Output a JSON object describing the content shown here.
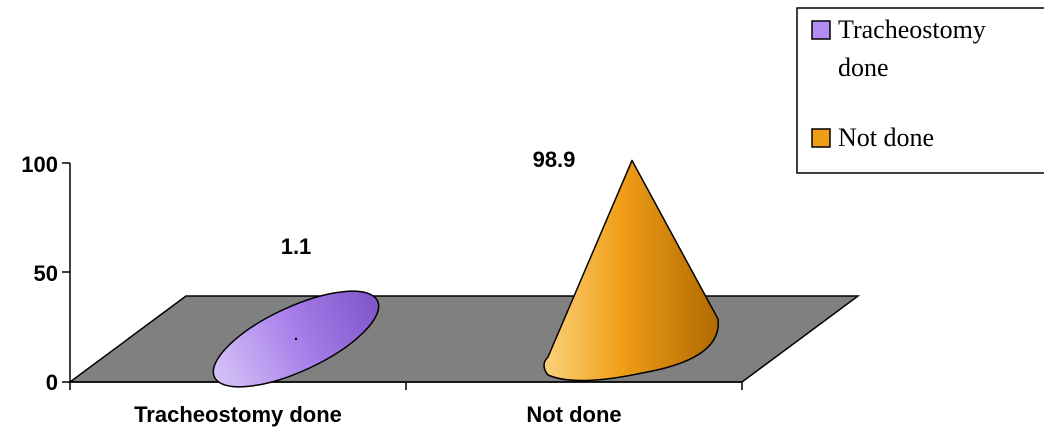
{
  "chart_data": {
    "type": "bar",
    "mark_shape": "3d-cone",
    "categories": [
      "Tracheostomy done",
      "Not done"
    ],
    "values": [
      1.1,
      98.9
    ],
    "series_colors": [
      "#b28cf0",
      "#f09d17"
    ],
    "ylim": [
      0,
      100
    ],
    "yticks": [
      0,
      50,
      100
    ],
    "data_labels": [
      "1.1",
      "98.9"
    ],
    "legend": {
      "placement": "top-right",
      "entries": [
        {
          "label_lines": [
            "Tracheostomy",
            "done"
          ],
          "color": "#b28cf0"
        },
        {
          "label_lines": [
            "Not done"
          ],
          "color": "#f09d17"
        }
      ]
    },
    "floor_color": "#808080",
    "grid": false
  }
}
